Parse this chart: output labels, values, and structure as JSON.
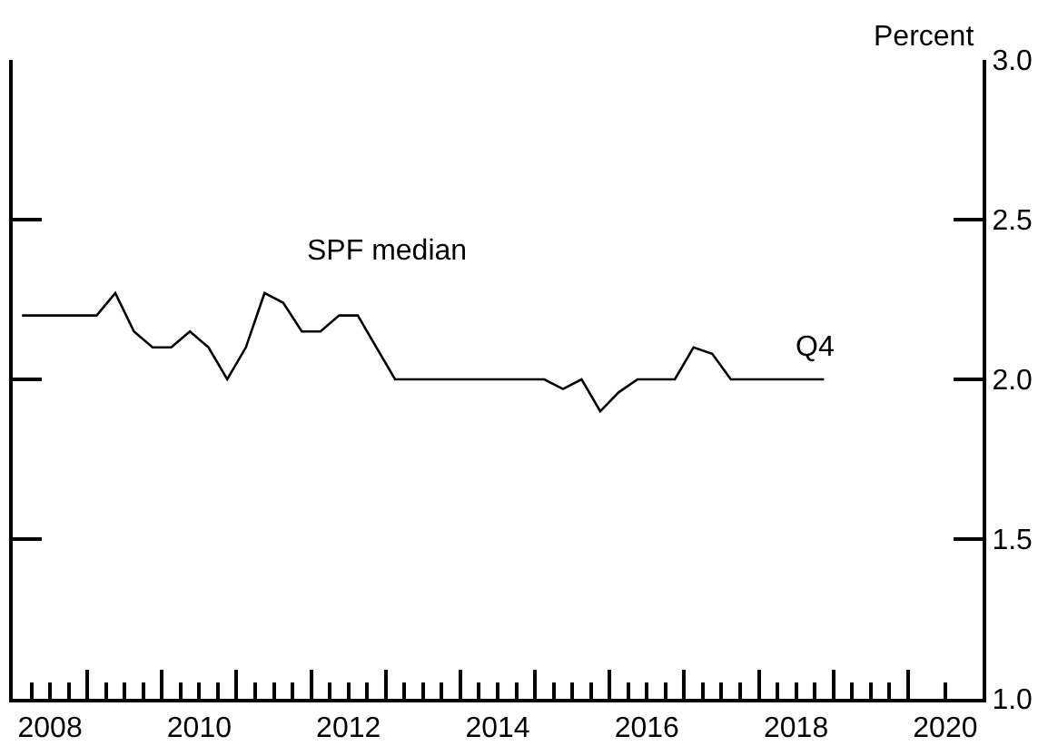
{
  "chart_data": {
    "type": "line",
    "ylabel": "Percent",
    "x": [
      2008.125,
      2008.375,
      2008.625,
      2008.875,
      2009.125,
      2009.375,
      2009.625,
      2009.875,
      2010.125,
      2010.375,
      2010.625,
      2010.875,
      2011.125,
      2011.375,
      2011.625,
      2011.875,
      2012.125,
      2012.375,
      2012.625,
      2012.875,
      2013.125,
      2013.375,
      2013.625,
      2013.875,
      2014.125,
      2014.375,
      2014.625,
      2014.875,
      2015.125,
      2015.375,
      2015.625,
      2015.875,
      2016.125,
      2016.375,
      2016.625,
      2016.875,
      2017.125,
      2017.375,
      2017.625,
      2017.875,
      2018.125,
      2018.375,
      2018.625,
      2018.875
    ],
    "series": [
      {
        "name": "SPF median",
        "color": "#000000",
        "values": [
          2.2,
          2.2,
          2.2,
          2.2,
          2.2,
          2.27,
          2.15,
          2.1,
          2.1,
          2.15,
          2.1,
          2.0,
          2.1,
          2.27,
          2.24,
          2.15,
          2.15,
          2.2,
          2.2,
          2.1,
          2.0,
          2.0,
          2.0,
          2.0,
          2.0,
          2.0,
          2.0,
          2.0,
          2.0,
          1.97,
          2.0,
          1.9,
          1.96,
          2.0,
          2.0,
          2.0,
          2.1,
          2.08,
          2.0,
          2.0,
          2.0,
          2.0,
          2.0,
          2.0
        ]
      }
    ],
    "annotations": [
      {
        "text": "Q4",
        "x": 2018.875,
        "y": 2.0
      }
    ],
    "xlim": [
      2008,
      2021
    ],
    "xticks": [
      {
        "value": 2008.25,
        "label": null
      },
      {
        "value": 2008.5,
        "label": "2008"
      },
      {
        "value": 2008.75,
        "label": null
      },
      {
        "value": 2009,
        "label": null
      },
      {
        "value": 2009.25,
        "label": null
      },
      {
        "value": 2009.5,
        "label": null
      },
      {
        "value": 2009.75,
        "label": null
      },
      {
        "value": 2010,
        "label": null
      },
      {
        "value": 2010.25,
        "label": null
      },
      {
        "value": 2010.5,
        "label": "2010"
      },
      {
        "value": 2010.75,
        "label": null
      },
      {
        "value": 2011,
        "label": null
      },
      {
        "value": 2011.25,
        "label": null
      },
      {
        "value": 2011.5,
        "label": null
      },
      {
        "value": 2011.75,
        "label": null
      },
      {
        "value": 2012,
        "label": null
      },
      {
        "value": 2012.25,
        "label": null
      },
      {
        "value": 2012.5,
        "label": "2012"
      },
      {
        "value": 2012.75,
        "label": null
      },
      {
        "value": 2013,
        "label": null
      },
      {
        "value": 2013.25,
        "label": null
      },
      {
        "value": 2013.5,
        "label": null
      },
      {
        "value": 2013.75,
        "label": null
      },
      {
        "value": 2014,
        "label": null
      },
      {
        "value": 2014.25,
        "label": null
      },
      {
        "value": 2014.5,
        "label": "2014"
      },
      {
        "value": 2014.75,
        "label": null
      },
      {
        "value": 2015,
        "label": null
      },
      {
        "value": 2015.25,
        "label": null
      },
      {
        "value": 2015.5,
        "label": null
      },
      {
        "value": 2015.75,
        "label": null
      },
      {
        "value": 2016,
        "label": null
      },
      {
        "value": 2016.25,
        "label": null
      },
      {
        "value": 2016.5,
        "label": "2016"
      },
      {
        "value": 2016.75,
        "label": null
      },
      {
        "value": 2017,
        "label": null
      },
      {
        "value": 2017.25,
        "label": null
      },
      {
        "value": 2017.5,
        "label": null
      },
      {
        "value": 2017.75,
        "label": null
      },
      {
        "value": 2018,
        "label": null
      },
      {
        "value": 2018.25,
        "label": null
      },
      {
        "value": 2018.5,
        "label": "2018"
      },
      {
        "value": 2018.75,
        "label": null
      },
      {
        "value": 2019,
        "label": null
      },
      {
        "value": 2019.25,
        "label": null
      },
      {
        "value": 2019.5,
        "label": null
      },
      {
        "value": 2019.75,
        "label": null
      },
      {
        "value": 2020,
        "label": null
      },
      {
        "value": 2020.5,
        "label": "2020"
      }
    ],
    "ylim": [
      1.0,
      3.0
    ],
    "yticks": [
      {
        "value": 1.0,
        "label": "1.0"
      },
      {
        "value": 1.5,
        "label": "1.5"
      },
      {
        "value": 2.0,
        "label": "2.0"
      },
      {
        "value": 2.5,
        "label": "2.5"
      },
      {
        "value": 3.0,
        "label": "3.0"
      }
    ],
    "grid": false,
    "legend": false,
    "marker": "none",
    "line_style": "solid"
  }
}
